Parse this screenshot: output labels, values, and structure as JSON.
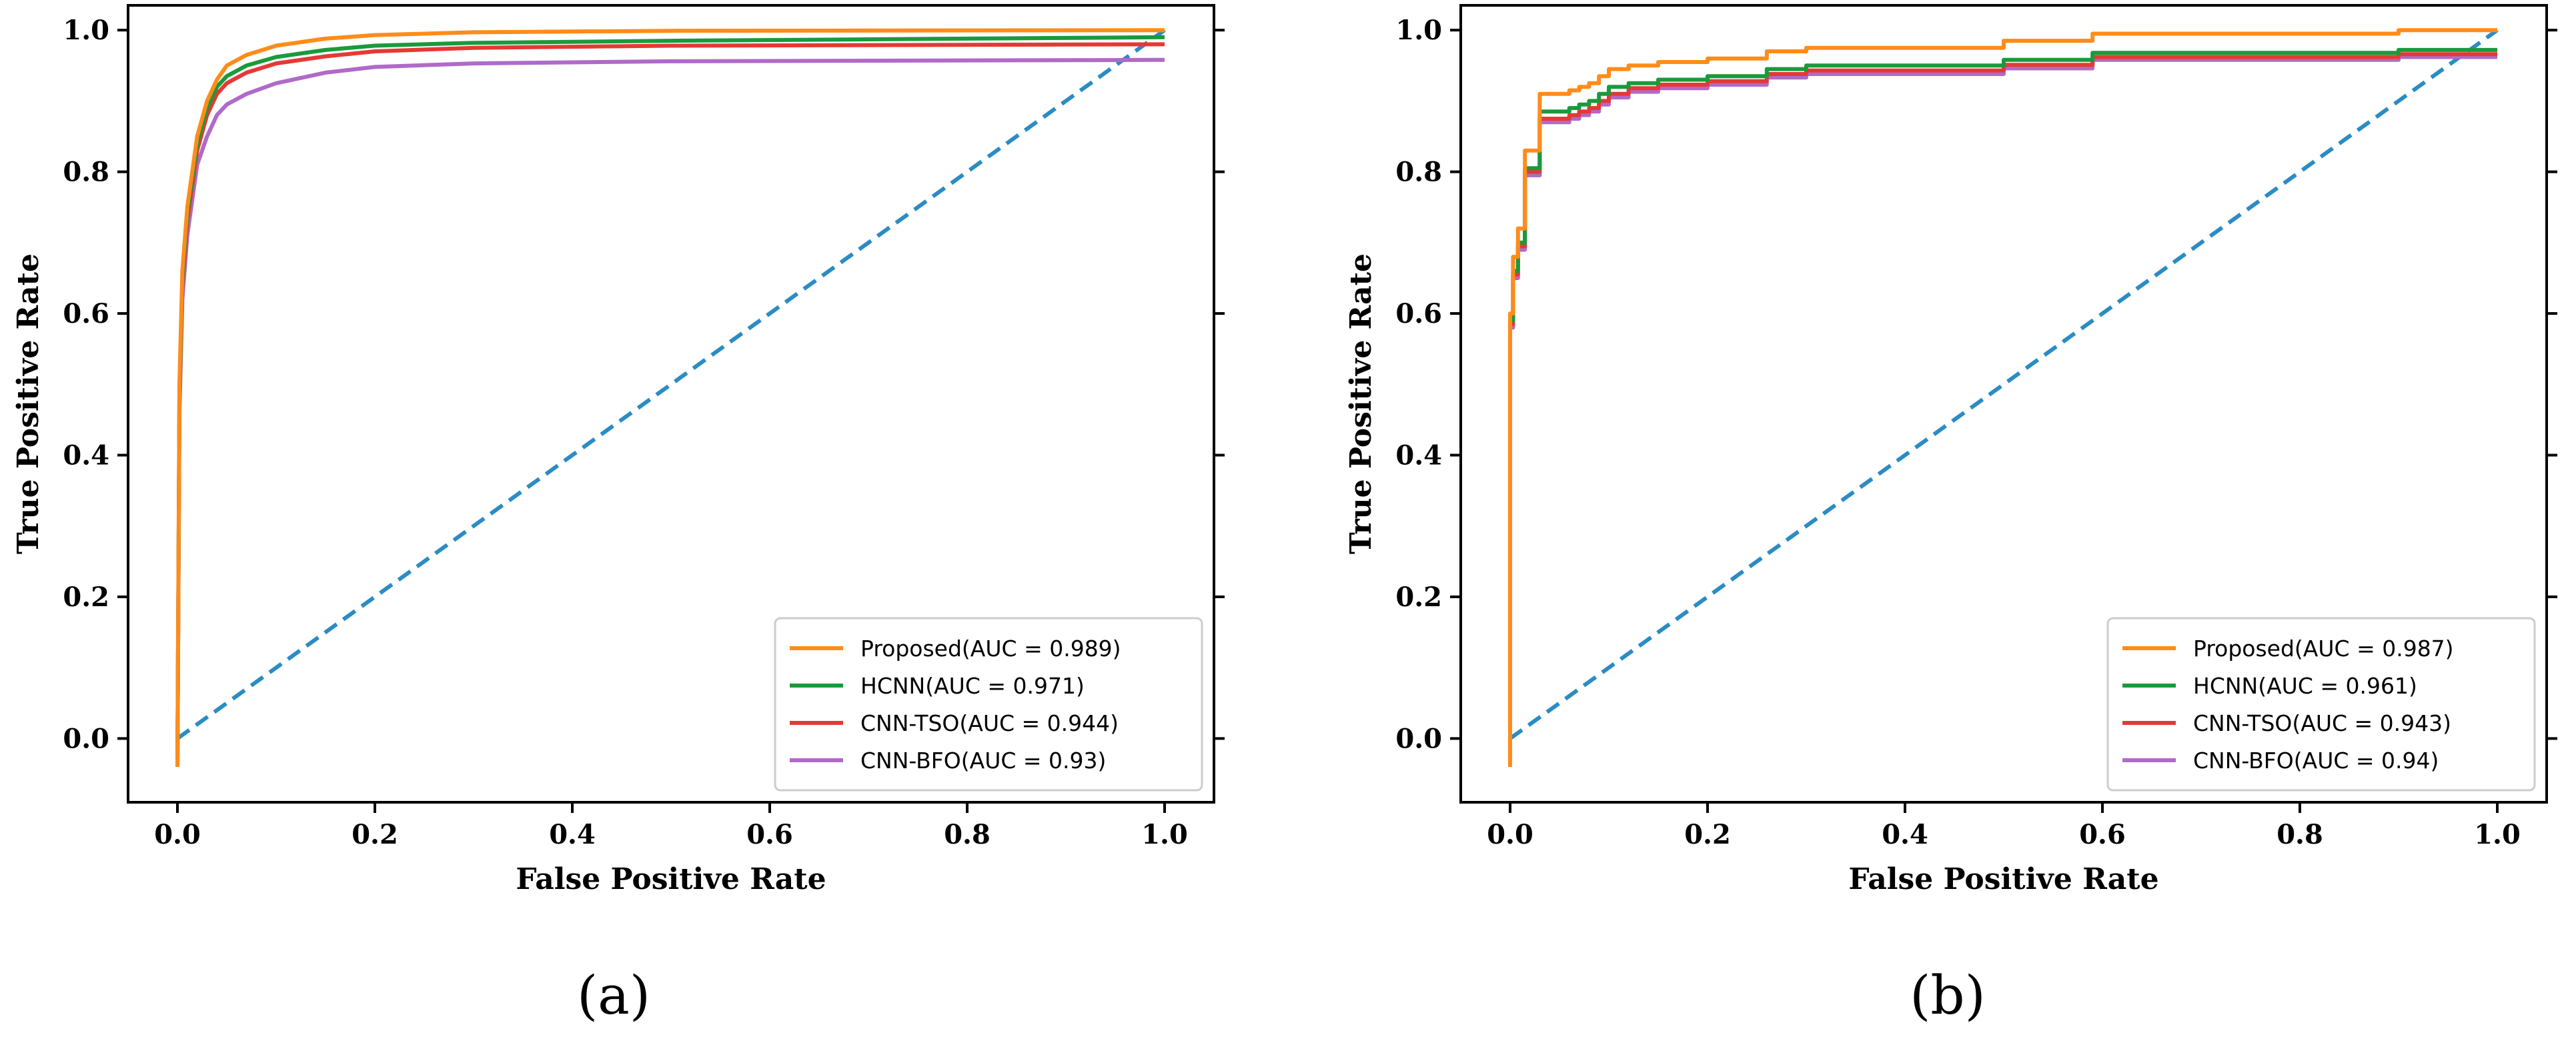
{
  "chart_data": [
    {
      "panel_label": "(a)",
      "type": "line",
      "title": "",
      "xlabel": "False Positive Rate",
      "ylabel": "True Positive Rate",
      "xlim": [
        -0.05,
        1.05
      ],
      "ylim": [
        -0.09,
        1.035
      ],
      "xticks": [
        0.0,
        0.2,
        0.4,
        0.6,
        0.8,
        1.0
      ],
      "xtick_labels": [
        "0.0",
        "0.2",
        "0.4",
        "0.6",
        "0.8",
        "1.0"
      ],
      "yticks": [
        0.0,
        0.2,
        0.4,
        0.6,
        0.8,
        1.0
      ],
      "ytick_labels": [
        "0.0",
        "0.2",
        "0.4",
        "0.6",
        "0.8",
        "1.0"
      ],
      "grid": false,
      "legend_position": "lower-right",
      "series": [
        {
          "name": "Proposed(AUC = 0.989)",
          "color": "#ff8c1a",
          "x": [
            0,
            0.002,
            0.005,
            0.01,
            0.015,
            0.02,
            0.03,
            0.04,
            0.05,
            0.07,
            0.1,
            0.15,
            0.2,
            0.3,
            0.5,
            1.0
          ],
          "y": [
            -0.04,
            0.5,
            0.66,
            0.75,
            0.8,
            0.85,
            0.9,
            0.93,
            0.95,
            0.965,
            0.978,
            0.988,
            0.993,
            0.997,
            0.999,
            1.0
          ]
        },
        {
          "name": "HCNN(AUC = 0.971)",
          "color": "#1a9a3c",
          "x": [
            0,
            0.002,
            0.005,
            0.01,
            0.015,
            0.02,
            0.03,
            0.04,
            0.05,
            0.07,
            0.1,
            0.15,
            0.2,
            0.3,
            0.5,
            1.0
          ],
          "y": [
            -0.04,
            0.48,
            0.65,
            0.74,
            0.79,
            0.84,
            0.89,
            0.92,
            0.935,
            0.95,
            0.962,
            0.972,
            0.978,
            0.982,
            0.985,
            0.99
          ]
        },
        {
          "name": "CNN-TSO(AUC = 0.944)",
          "color": "#e53935",
          "x": [
            0,
            0.002,
            0.005,
            0.01,
            0.015,
            0.02,
            0.03,
            0.04,
            0.05,
            0.07,
            0.1,
            0.15,
            0.2,
            0.3,
            0.5,
            1.0
          ],
          "y": [
            -0.04,
            0.47,
            0.64,
            0.73,
            0.78,
            0.83,
            0.88,
            0.91,
            0.925,
            0.94,
            0.953,
            0.963,
            0.97,
            0.975,
            0.978,
            0.98
          ]
        },
        {
          "name": "CNN-BFO(AUC = 0.93)",
          "color": "#b06ac8",
          "x": [
            0,
            0.002,
            0.005,
            0.01,
            0.015,
            0.02,
            0.03,
            0.04,
            0.05,
            0.07,
            0.1,
            0.15,
            0.2,
            0.3,
            0.5,
            1.0
          ],
          "y": [
            -0.04,
            0.46,
            0.62,
            0.71,
            0.76,
            0.81,
            0.85,
            0.88,
            0.895,
            0.91,
            0.925,
            0.94,
            0.948,
            0.953,
            0.956,
            0.958
          ]
        }
      ],
      "diagonal": {
        "color": "#2b8cc4",
        "x": [
          0,
          1
        ],
        "y": [
          0,
          1
        ]
      }
    },
    {
      "panel_label": "(b)",
      "type": "line",
      "title": "",
      "xlabel": "False Positive Rate",
      "ylabel": "True Positive Rate",
      "xlim": [
        -0.05,
        1.05
      ],
      "ylim": [
        -0.09,
        1.035
      ],
      "xticks": [
        0.0,
        0.2,
        0.4,
        0.6,
        0.8,
        1.0
      ],
      "xtick_labels": [
        "0.0",
        "0.2",
        "0.4",
        "0.6",
        "0.8",
        "1.0"
      ],
      "yticks": [
        0.0,
        0.2,
        0.4,
        0.6,
        0.8,
        1.0
      ],
      "ytick_labels": [
        "0.0",
        "0.2",
        "0.4",
        "0.6",
        "0.8",
        "1.0"
      ],
      "grid": false,
      "legend_position": "lower-right",
      "series": [
        {
          "name": "Proposed(AUC = 0.987)",
          "color": "#ff8c1a",
          "step": true,
          "x": [
            0,
            0,
            0.003,
            0.003,
            0.008,
            0.008,
            0.015,
            0.015,
            0.03,
            0.03,
            0.06,
            0.06,
            0.07,
            0.07,
            0.08,
            0.08,
            0.09,
            0.09,
            0.1,
            0.1,
            0.12,
            0.12,
            0.15,
            0.15,
            0.2,
            0.2,
            0.26,
            0.26,
            0.3,
            0.3,
            0.5,
            0.5,
            0.59,
            0.59,
            0.9,
            0.9,
            1.0
          ],
          "y": [
            -0.04,
            0.6,
            0.6,
            0.68,
            0.68,
            0.72,
            0.72,
            0.83,
            0.83,
            0.91,
            0.91,
            0.915,
            0.915,
            0.92,
            0.92,
            0.925,
            0.925,
            0.935,
            0.935,
            0.945,
            0.945,
            0.95,
            0.95,
            0.955,
            0.955,
            0.96,
            0.96,
            0.97,
            0.97,
            0.975,
            0.975,
            0.985,
            0.985,
            0.995,
            0.995,
            1.0,
            1.0
          ]
        },
        {
          "name": "HCNN(AUC = 0.961)",
          "color": "#1a9a3c",
          "step": true,
          "x": [
            0,
            0,
            0.003,
            0.003,
            0.008,
            0.008,
            0.015,
            0.015,
            0.03,
            0.03,
            0.06,
            0.06,
            0.07,
            0.07,
            0.08,
            0.08,
            0.09,
            0.09,
            0.1,
            0.1,
            0.12,
            0.12,
            0.15,
            0.15,
            0.2,
            0.2,
            0.26,
            0.26,
            0.3,
            0.3,
            0.5,
            0.5,
            0.59,
            0.59,
            0.9,
            0.9,
            1.0
          ],
          "y": [
            -0.04,
            0.59,
            0.59,
            0.66,
            0.66,
            0.7,
            0.7,
            0.805,
            0.805,
            0.885,
            0.885,
            0.89,
            0.89,
            0.895,
            0.895,
            0.9,
            0.9,
            0.91,
            0.91,
            0.92,
            0.92,
            0.925,
            0.925,
            0.93,
            0.93,
            0.935,
            0.935,
            0.945,
            0.945,
            0.95,
            0.95,
            0.958,
            0.958,
            0.968,
            0.968,
            0.972,
            0.972
          ]
        },
        {
          "name": "CNN-TSO(AUC = 0.943)",
          "color": "#e53935",
          "step": true,
          "x": [
            0,
            0,
            0.003,
            0.003,
            0.008,
            0.008,
            0.015,
            0.015,
            0.03,
            0.03,
            0.06,
            0.06,
            0.07,
            0.07,
            0.08,
            0.08,
            0.09,
            0.09,
            0.1,
            0.1,
            0.12,
            0.12,
            0.15,
            0.15,
            0.2,
            0.2,
            0.26,
            0.26,
            0.3,
            0.3,
            0.5,
            0.5,
            0.59,
            0.59,
            0.9,
            0.9,
            1.0
          ],
          "y": [
            -0.04,
            0.585,
            0.585,
            0.655,
            0.655,
            0.695,
            0.695,
            0.8,
            0.8,
            0.875,
            0.875,
            0.88,
            0.88,
            0.885,
            0.885,
            0.89,
            0.89,
            0.9,
            0.9,
            0.91,
            0.91,
            0.918,
            0.918,
            0.923,
            0.923,
            0.928,
            0.928,
            0.938,
            0.938,
            0.943,
            0.943,
            0.951,
            0.951,
            0.962,
            0.962,
            0.966,
            0.966
          ]
        },
        {
          "name": "CNN-BFO(AUC = 0.94)",
          "color": "#b06ac8",
          "step": true,
          "x": [
            0,
            0,
            0.003,
            0.003,
            0.008,
            0.008,
            0.015,
            0.015,
            0.03,
            0.03,
            0.06,
            0.06,
            0.07,
            0.07,
            0.08,
            0.08,
            0.09,
            0.09,
            0.1,
            0.1,
            0.12,
            0.12,
            0.15,
            0.15,
            0.2,
            0.2,
            0.26,
            0.26,
            0.3,
            0.3,
            0.5,
            0.5,
            0.59,
            0.59,
            0.9,
            0.9,
            1.0
          ],
          "y": [
            -0.04,
            0.58,
            0.58,
            0.65,
            0.65,
            0.69,
            0.69,
            0.795,
            0.795,
            0.87,
            0.87,
            0.875,
            0.875,
            0.88,
            0.88,
            0.885,
            0.885,
            0.895,
            0.895,
            0.905,
            0.905,
            0.913,
            0.913,
            0.918,
            0.918,
            0.923,
            0.923,
            0.933,
            0.933,
            0.938,
            0.938,
            0.946,
            0.946,
            0.958,
            0.958,
            0.962,
            0.962
          ]
        }
      ],
      "diagonal": {
        "color": "#2b8cc4",
        "x": [
          0,
          1
        ],
        "y": [
          0,
          1
        ]
      }
    }
  ]
}
